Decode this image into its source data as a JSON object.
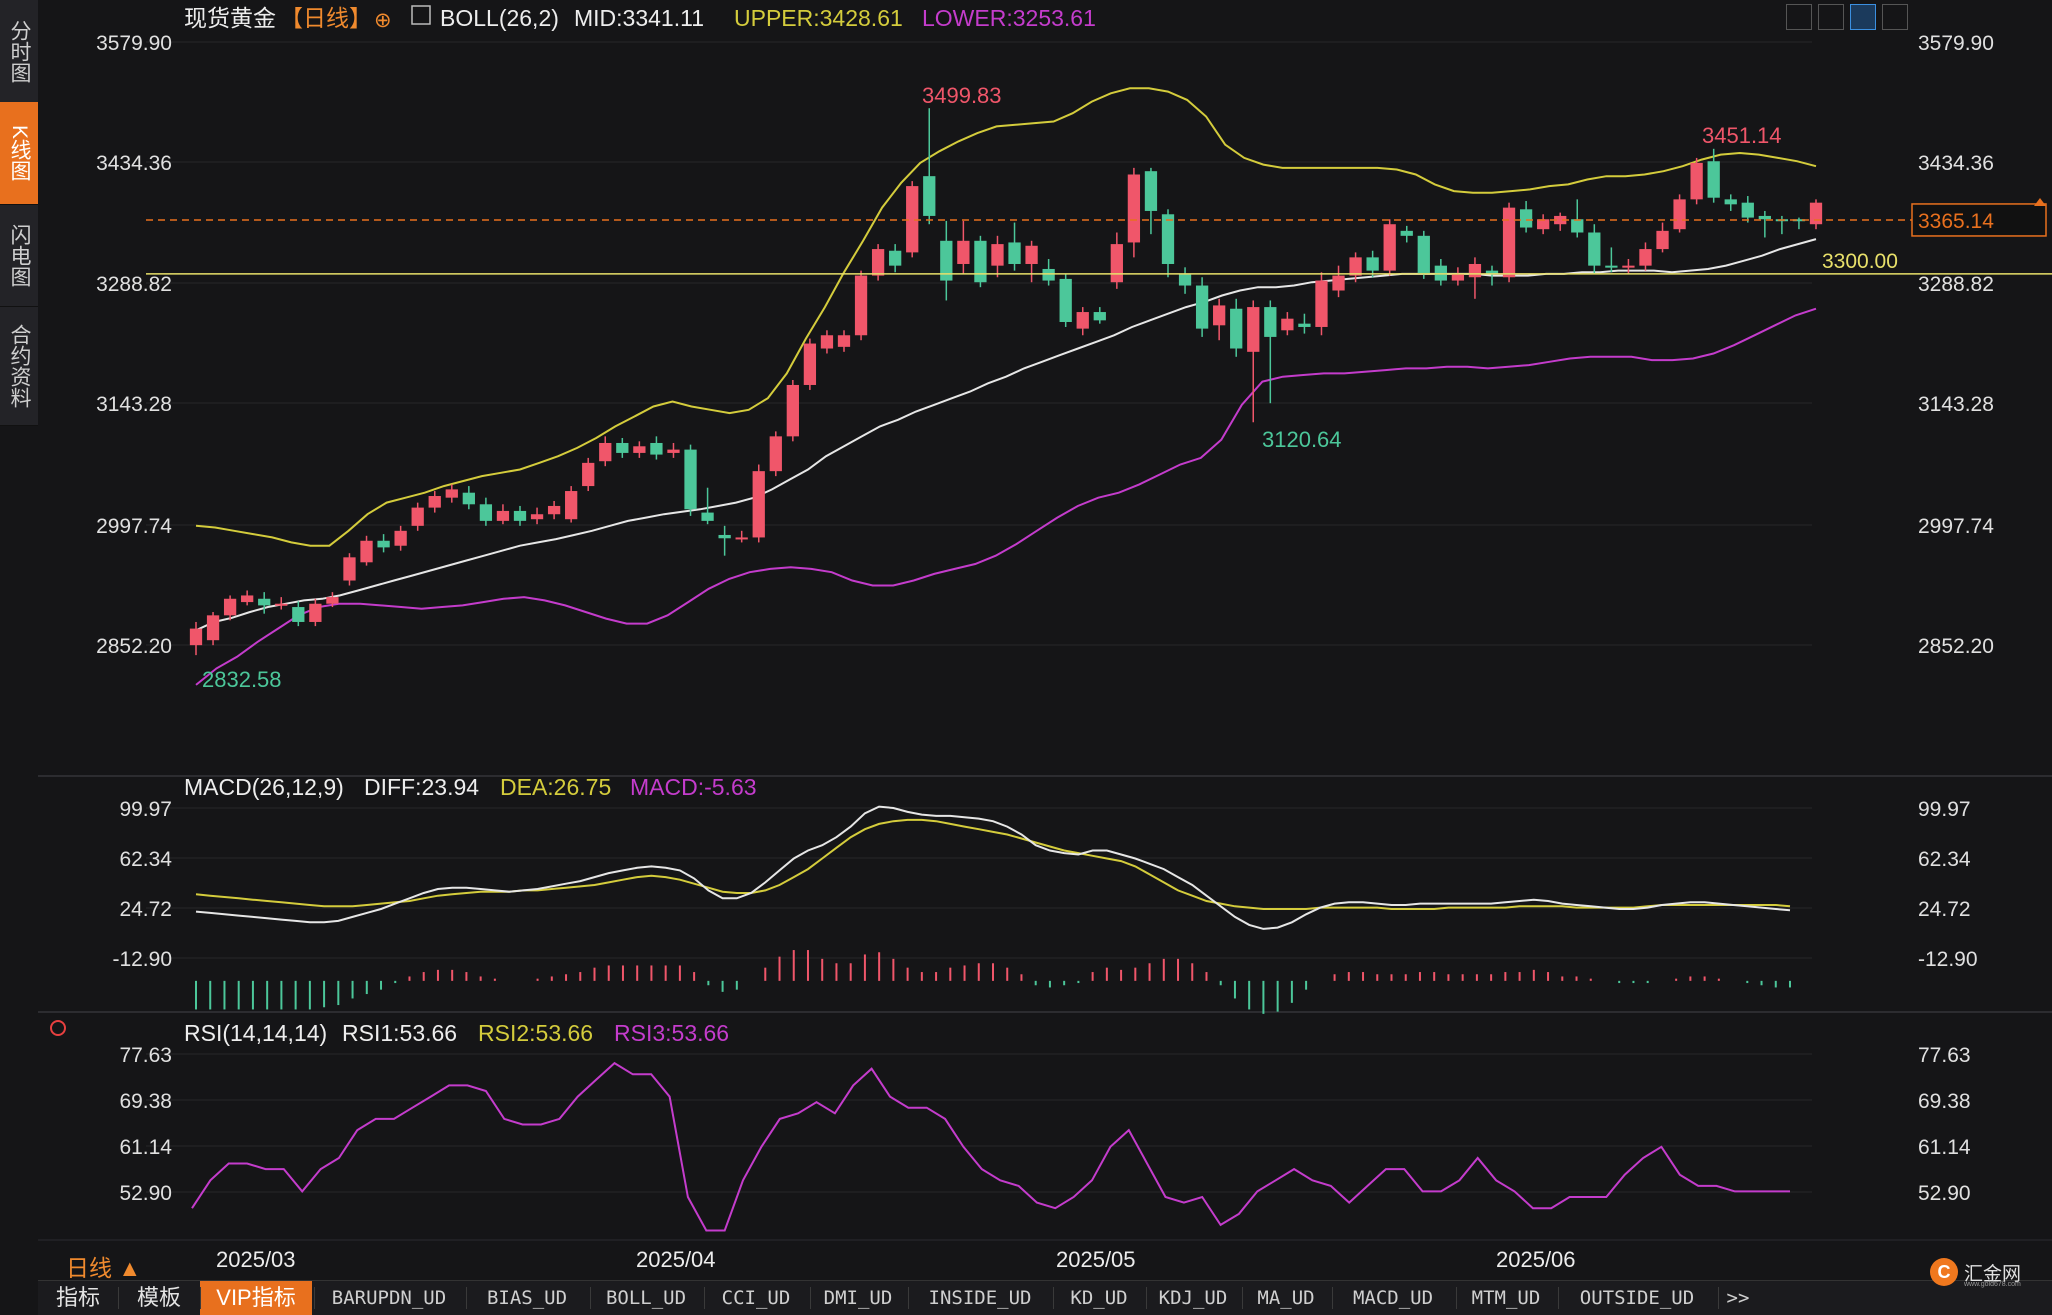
{
  "side_tabs": [
    {
      "label": "分时图",
      "active": false
    },
    {
      "label": "K线图",
      "active": true
    },
    {
      "label": "闪电图",
      "active": false
    },
    {
      "label": "合约资料",
      "active": false
    }
  ],
  "header": {
    "instrument": "现货黄金",
    "period_tag": "【日线】",
    "add_symbol": "⊕",
    "indicator": "BOLL(26,2)",
    "mid": "MID:3341.11",
    "upper": "UPPER:3428.61",
    "lower": "LOWER:3253.61"
  },
  "macd_header": {
    "name": "MACD(26,12,9)",
    "diff": "DIFF:23.94",
    "dea": "DEA:26.75",
    "macd": "MACD:-5.63"
  },
  "rsi_header": {
    "name": "RSI(14,14,14)",
    "rsi1": "RSI1:53.66",
    "rsi2": "RSI2:53.66",
    "rsi3": "RSI3:53.66"
  },
  "price_axis": [
    "3579.90",
    "3434.36",
    "3288.82",
    "3143.28",
    "2997.74",
    "2852.20"
  ],
  "macd_axis": [
    "99.97",
    "62.34",
    "24.72",
    "-12.90"
  ],
  "rsi_axis": [
    "77.63",
    "69.38",
    "61.14",
    "52.90"
  ],
  "date_labels": [
    "2025/03",
    "2025/04",
    "2025/05",
    "2025/06"
  ],
  "annotations": {
    "high": "3499.83",
    "low": "2832.58",
    "recent_high": "3451.14",
    "swing_low": "3120.64",
    "current_price": "3365.14",
    "support_line": "3300.00"
  },
  "period_selector": "日线 ▲",
  "bottom_tabs": [
    "指标",
    "模板",
    "VIP指标",
    "BARUPDN_UD",
    "BIAS_UD",
    "BOLL_UD",
    "CCI_UD",
    "DMI_UD",
    "INSIDE_UD",
    "KD_UD",
    "KDJ_UD",
    "MA_UD",
    "MACD_UD",
    "MTM_UD",
    "OUTSIDE_UD",
    ">>"
  ],
  "logo_text": "汇金网",
  "logo_sub": "www.gold678.com",
  "colors": {
    "up": "#f0566a",
    "down": "#4cc79a",
    "mid": "#e6e6e6",
    "upper": "#d4cc3c",
    "lower": "#c43ccc",
    "accent": "#e8701e"
  },
  "chart_data": [
    {
      "type": "candlestick",
      "title": "现货黄金【日线】",
      "indicator": "BOLL(26,2)",
      "ylim": [
        2852.2,
        3579.9
      ],
      "candles": [
        [
          2852,
          2872,
          2840,
          2880
        ],
        [
          2858,
          2888,
          2852,
          2892
        ],
        [
          2888,
          2908,
          2882,
          2912
        ],
        [
          2904,
          2912,
          2900,
          2918
        ],
        [
          2908,
          2900,
          2890,
          2916
        ],
        [
          2900,
          2902,
          2895,
          2910
        ],
        [
          2898,
          2880,
          2875,
          2905
        ],
        [
          2880,
          2902,
          2875,
          2908
        ],
        [
          2902,
          2910,
          2898,
          2916
        ],
        [
          2930,
          2958,
          2924,
          2963
        ],
        [
          2952,
          2978,
          2948,
          2984
        ],
        [
          2978,
          2970,
          2964,
          2986
        ],
        [
          2972,
          2990,
          2966,
          2996
        ],
        [
          2996,
          3018,
          2990,
          3024
        ],
        [
          3018,
          3032,
          3012,
          3038
        ],
        [
          3030,
          3040,
          3024,
          3046
        ],
        [
          3036,
          3022,
          3016,
          3044
        ],
        [
          3022,
          3002,
          2996,
          3030
        ],
        [
          3002,
          3014,
          2998,
          3022
        ],
        [
          3014,
          3002,
          2996,
          3020
        ],
        [
          3004,
          3010,
          2998,
          3018
        ],
        [
          3010,
          3020,
          3004,
          3026
        ],
        [
          3004,
          3038,
          3000,
          3044
        ],
        [
          3044,
          3072,
          3038,
          3078
        ],
        [
          3074,
          3096,
          3068,
          3104
        ],
        [
          3096,
          3084,
          3078,
          3102
        ],
        [
          3084,
          3092,
          3078,
          3098
        ],
        [
          3096,
          3082,
          3076,
          3104
        ],
        [
          3084,
          3088,
          3078,
          3096
        ],
        [
          3088,
          3016,
          3008,
          3094
        ],
        [
          3012,
          3002,
          2998,
          3042
        ],
        [
          2985,
          2981,
          2960,
          2996
        ],
        [
          2982,
          2982,
          2976,
          2990
        ],
        [
          2982,
          3062,
          2976,
          3070
        ],
        [
          3062,
          3104,
          3056,
          3110
        ],
        [
          3104,
          3166,
          3098,
          3172
        ],
        [
          3166,
          3216,
          3160,
          3222
        ],
        [
          3210,
          3226,
          3204,
          3232
        ],
        [
          3212,
          3226,
          3206,
          3232
        ],
        [
          3226,
          3298,
          3220,
          3304
        ],
        [
          3298,
          3330,
          3292,
          3336
        ],
        [
          3328,
          3310,
          3302,
          3336
        ],
        [
          3326,
          3406,
          3320,
          3412
        ],
        [
          3418,
          3370,
          3360,
          3500
        ],
        [
          3340,
          3292,
          3268,
          3364
        ],
        [
          3312,
          3340,
          3300,
          3364
        ],
        [
          3340,
          3290,
          3284,
          3346
        ],
        [
          3310,
          3336,
          3296,
          3346
        ],
        [
          3338,
          3312,
          3304,
          3362
        ],
        [
          3312,
          3334,
          3290,
          3340
        ],
        [
          3306,
          3292,
          3286,
          3318
        ],
        [
          3294,
          3242,
          3236,
          3300
        ],
        [
          3234,
          3254,
          3226,
          3260
        ],
        [
          3254,
          3244,
          3240,
          3260
        ],
        [
          3290,
          3336,
          3282,
          3350
        ],
        [
          3338,
          3420,
          3320,
          3428
        ],
        [
          3424,
          3376,
          3348,
          3428
        ],
        [
          3372,
          3312,
          3296,
          3378
        ],
        [
          3300,
          3286,
          3276,
          3308
        ],
        [
          3286,
          3234,
          3224,
          3296
        ],
        [
          3238,
          3262,
          3220,
          3270
        ],
        [
          3258,
          3210,
          3200,
          3270
        ],
        [
          3206,
          3260,
          3121,
          3268
        ],
        [
          3260,
          3224,
          3144,
          3268
        ],
        [
          3232,
          3246,
          3226,
          3254
        ],
        [
          3240,
          3236,
          3228,
          3252
        ],
        [
          3236,
          3292,
          3226,
          3302
        ],
        [
          3280,
          3298,
          3272,
          3310
        ],
        [
          3298,
          3320,
          3290,
          3326
        ],
        [
          3320,
          3304,
          3296,
          3328
        ],
        [
          3304,
          3360,
          3298,
          3366
        ],
        [
          3352,
          3346,
          3338,
          3358
        ],
        [
          3346,
          3300,
          3294,
          3352
        ],
        [
          3310,
          3292,
          3286,
          3318
        ],
        [
          3292,
          3300,
          3286,
          3308
        ],
        [
          3296,
          3312,
          3270,
          3320
        ],
        [
          3304,
          3300,
          3286,
          3310
        ],
        [
          3296,
          3380,
          3290,
          3386
        ],
        [
          3378,
          3356,
          3350,
          3388
        ],
        [
          3354,
          3366,
          3348,
          3372
        ],
        [
          3360,
          3370,
          3352,
          3374
        ],
        [
          3366,
          3350,
          3344,
          3390
        ],
        [
          3350,
          3310,
          3300,
          3360
        ],
        [
          3310,
          3308,
          3302,
          3332
        ],
        [
          3310,
          3310,
          3300,
          3318
        ],
        [
          3310,
          3330,
          3304,
          3338
        ],
        [
          3330,
          3352,
          3326,
          3362
        ],
        [
          3354,
          3390,
          3350,
          3396
        ],
        [
          3390,
          3434,
          3384,
          3440
        ],
        [
          3436,
          3392,
          3386,
          3451
        ],
        [
          3390,
          3384,
          3376,
          3396
        ],
        [
          3386,
          3368,
          3362,
          3394
        ],
        [
          3370,
          3366,
          3344,
          3376
        ],
        [
          3366,
          3364,
          3348,
          3370
        ],
        [
          3366,
          3364,
          3354,
          3368
        ],
        [
          3360,
          3386,
          3354,
          3390
        ]
      ],
      "mid_line": [
        2870,
        2880,
        2885,
        2892,
        2898,
        2902,
        2906,
        2908,
        2912,
        2918,
        2924,
        2930,
        2936,
        2942,
        2948,
        2954,
        2960,
        2966,
        2972,
        2976,
        2980,
        2985,
        2990,
        2996,
        3002,
        3006,
        3010,
        3013,
        3016,
        3020,
        3024,
        3030,
        3040,
        3052,
        3064,
        3080,
        3092,
        3104,
        3116,
        3124,
        3134,
        3142,
        3150,
        3158,
        3168,
        3176,
        3186,
        3194,
        3202,
        3210,
        3218,
        3226,
        3236,
        3244,
        3252,
        3260,
        3266,
        3274,
        3280,
        3284,
        3284,
        3286,
        3290,
        3292,
        3294,
        3296,
        3298,
        3300,
        3300,
        3300,
        3300,
        3300,
        3298,
        3298,
        3298,
        3300,
        3300,
        3302,
        3302,
        3304,
        3304,
        3304,
        3302,
        3304,
        3306,
        3310,
        3316,
        3322,
        3330,
        3336,
        3342
      ],
      "upper_line": [
        2996,
        2994,
        2990,
        2986,
        2982,
        2976,
        2972,
        2972,
        2990,
        3010,
        3024,
        3030,
        3036,
        3044,
        3050,
        3056,
        3060,
        3064,
        3072,
        3080,
        3090,
        3102,
        3116,
        3128,
        3140,
        3146,
        3140,
        3136,
        3132,
        3136,
        3150,
        3180,
        3222,
        3260,
        3302,
        3340,
        3380,
        3410,
        3434,
        3448,
        3460,
        3470,
        3478,
        3480,
        3482,
        3484,
        3494,
        3508,
        3518,
        3524,
        3524,
        3520,
        3510,
        3490,
        3456,
        3440,
        3432,
        3428,
        3428,
        3428,
        3428,
        3428,
        3428,
        3426,
        3420,
        3408,
        3400,
        3398,
        3398,
        3400,
        3402,
        3406,
        3408,
        3414,
        3418,
        3418,
        3420,
        3424,
        3430,
        3438,
        3444,
        3446,
        3444,
        3440,
        3436,
        3430
      ],
      "lower_line": [
        2804,
        2824,
        2838,
        2856,
        2872,
        2888,
        2898,
        2902,
        2902,
        2900,
        2898,
        2896,
        2898,
        2900,
        2904,
        2908,
        2910,
        2906,
        2900,
        2892,
        2884,
        2878,
        2878,
        2888,
        2904,
        2920,
        2932,
        2940,
        2944,
        2946,
        2944,
        2940,
        2930,
        2924,
        2924,
        2930,
        2938,
        2944,
        2950,
        2960,
        2974,
        2990,
        3006,
        3020,
        3030,
        3036,
        3046,
        3058,
        3070,
        3078,
        3100,
        3142,
        3170,
        3176,
        3178,
        3180,
        3180,
        3182,
        3184,
        3186,
        3186,
        3188,
        3188,
        3186,
        3188,
        3190,
        3194,
        3198,
        3200,
        3200,
        3200,
        3196,
        3196,
        3198,
        3204,
        3214,
        3226,
        3238,
        3250,
        3258
      ]
    },
    {
      "type": "line",
      "title": "MACD(26,12,9)",
      "ylim": [
        -12.9,
        99.97
      ],
      "diff": [
        22,
        21,
        20,
        19,
        18,
        17,
        16,
        15,
        14,
        14,
        15,
        18,
        21,
        24,
        28,
        32,
        36,
        39,
        40,
        40,
        39,
        38,
        37,
        38,
        39,
        41,
        43,
        45,
        48,
        51,
        53,
        55,
        56,
        55,
        53,
        47,
        38,
        32,
        32,
        36,
        44,
        53,
        62,
        68,
        72,
        78,
        86,
        96,
        101,
        100,
        97,
        95,
        94,
        94,
        93,
        92,
        90,
        86,
        80,
        72,
        68,
        66,
        65,
        68,
        68,
        65,
        62,
        58,
        54,
        48,
        42,
        34,
        26,
        18,
        12,
        9,
        10,
        14,
        20,
        25,
        28,
        29,
        29,
        28,
        27,
        27,
        28,
        28,
        28,
        28,
        28,
        28,
        29,
        30,
        31,
        30,
        28,
        27,
        26,
        25,
        24,
        24,
        25,
        27,
        28,
        29,
        29,
        28,
        27,
        26,
        25,
        24,
        23
      ],
      "dea": [
        35,
        34,
        33,
        32,
        31,
        30,
        29,
        28,
        27,
        26,
        26,
        26,
        27,
        28,
        29,
        30,
        32,
        34,
        35,
        36,
        37,
        37,
        37,
        38,
        38,
        39,
        40,
        41,
        42,
        44,
        46,
        48,
        49,
        48,
        46,
        43,
        40,
        37,
        36,
        36,
        38,
        42,
        48,
        54,
        62,
        70,
        78,
        84,
        88,
        90,
        91,
        91,
        90,
        88,
        86,
        84,
        82,
        80,
        77,
        74,
        71,
        68,
        66,
        64,
        62,
        60,
        56,
        50,
        44,
        38,
        34,
        30,
        28,
        26,
        25,
        24,
        24,
        24,
        24,
        25,
        25,
        25,
        25,
        25,
        24,
        24,
        24,
        24,
        25,
        25,
        25,
        25,
        25,
        26,
        26,
        26,
        26,
        25,
        25,
        25,
        25,
        25,
        26,
        27,
        27,
        27,
        27,
        27,
        27,
        27,
        27,
        27,
        26
      ]
    },
    {
      "type": "line",
      "title": "RSI(14,14,14)",
      "ylim": [
        52.9,
        77.63
      ],
      "rsi": [
        50,
        55,
        58,
        58,
        57,
        57,
        53,
        57,
        59,
        64,
        66,
        66,
        68,
        70,
        72,
        72,
        71,
        66,
        65,
        65,
        66,
        70,
        73,
        76,
        74,
        74,
        70,
        52,
        46,
        46,
        55,
        61,
        66,
        67,
        69,
        67,
        72,
        75,
        70,
        68,
        68,
        66,
        61,
        57,
        55,
        54,
        51,
        50,
        52,
        55,
        61,
        64,
        58,
        52,
        51,
        52,
        47,
        49,
        53,
        55,
        57,
        55,
        54,
        51,
        54,
        57,
        57,
        53,
        53,
        55,
        59,
        55,
        53,
        50,
        50,
        52,
        52,
        52,
        56,
        59,
        61,
        56,
        54,
        54,
        53,
        53,
        53,
        53
      ]
    }
  ]
}
